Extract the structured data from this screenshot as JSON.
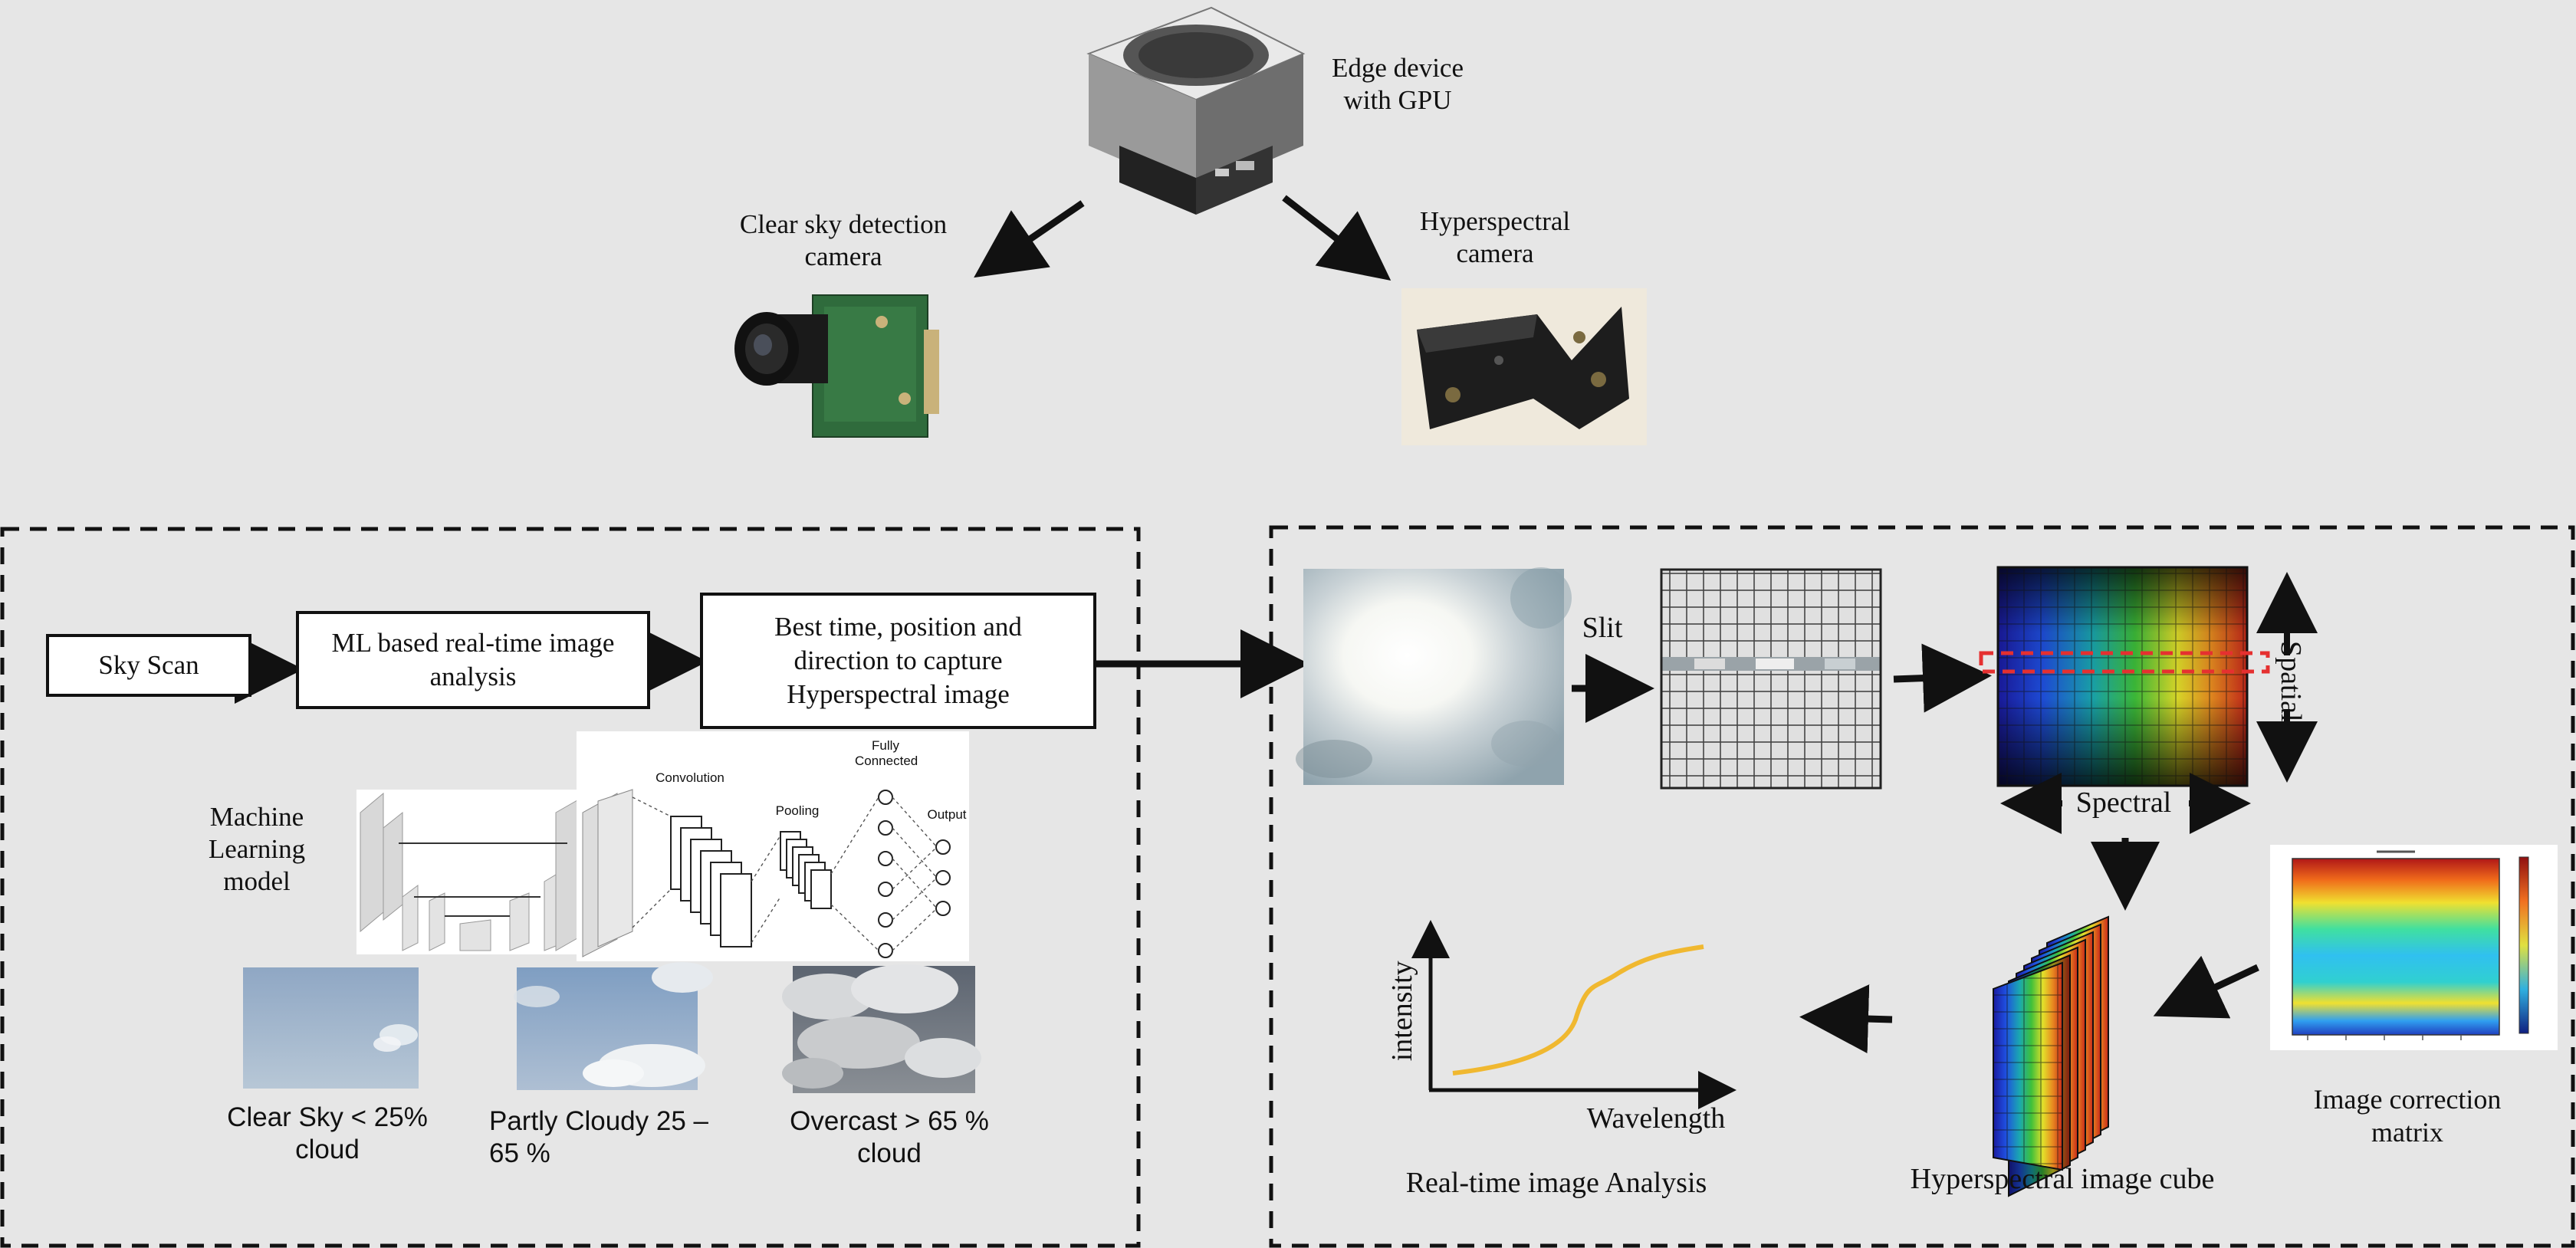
{
  "top": {
    "edge_device": "Edge device with GPU",
    "clear_sky_camera": "Clear sky detection camera",
    "hyperspectral_camera": "Hyperspectral camera"
  },
  "left_panel": {
    "sky_scan": "Sky Scan",
    "ml_analysis": "ML based real-time image analysis",
    "best_time": "Best time, position and direction to capture Hyperspectral image",
    "ml_model_label": "Machine Learning model",
    "cnn": {
      "convolution": "Convolution",
      "pooling": "Pooling",
      "fully_connected": "Fully Connected",
      "output": "Output"
    },
    "sky_classes": [
      {
        "label": "Clear Sky < 25% cloud"
      },
      {
        "label": "Partly Cloudy 25 – 65 %"
      },
      {
        "label": "Overcast > 65 % cloud"
      }
    ]
  },
  "right_panel": {
    "slit": "Slit",
    "spatial": "Spatial",
    "spectral": "Spectral",
    "intensity": "intensity",
    "wavelength": "Wavelength",
    "realtime_analysis": "Real-time image Analysis",
    "image_cube": "Hyperspectral image cube",
    "correction_matrix": "Image correction matrix"
  },
  "colors": {
    "background": "#e6e6e6",
    "dashed_line": "#111111",
    "curve": "#f0b830",
    "slit_marker": "#e53030"
  }
}
